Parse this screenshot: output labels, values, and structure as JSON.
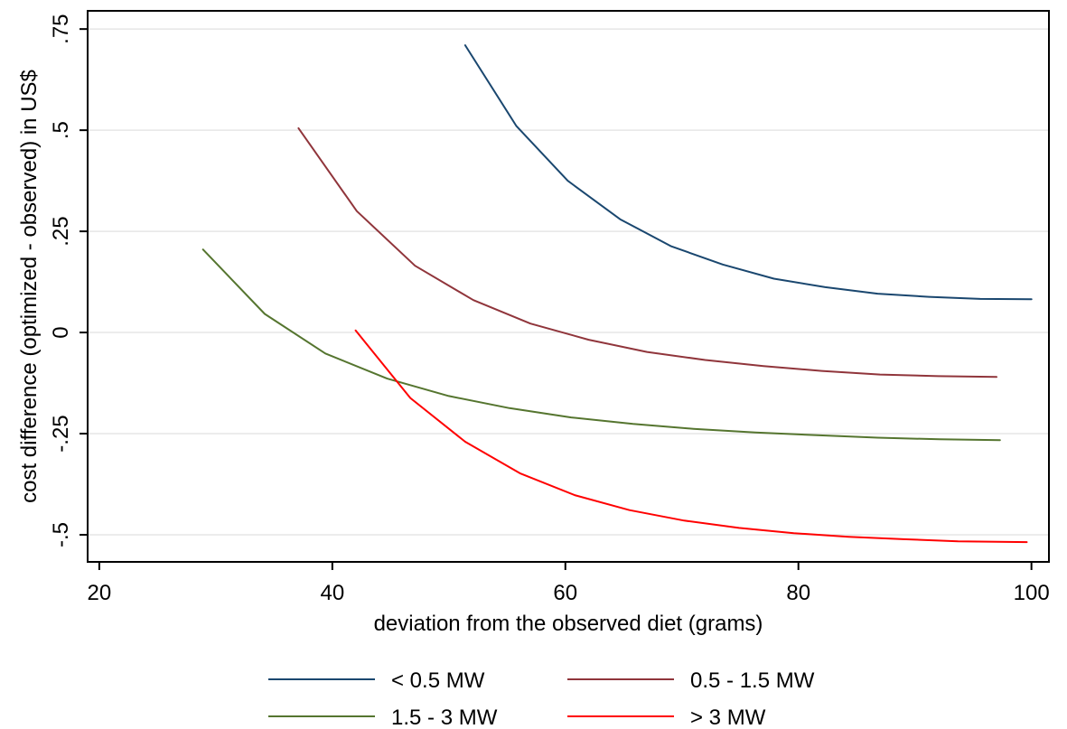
{
  "chart_data": {
    "type": "line",
    "title": "",
    "xlabel": "deviation from the observed diet (grams)",
    "ylabel": "cost difference (optimized - observed) in US$",
    "xlim": [
      19,
      101.5
    ],
    "ylim": [
      -0.567,
      0.795
    ],
    "xticks": [
      20,
      40,
      60,
      80,
      100
    ],
    "xtick_labels": [
      "20",
      "40",
      "60",
      "80",
      "100"
    ],
    "yticks": [
      -0.5,
      -0.25,
      0,
      0.25,
      0.5,
      0.75
    ],
    "ytick_labels": [
      "-.5",
      "-.25",
      "0",
      ".25",
      ".5",
      ".75"
    ],
    "grid": "horizontal",
    "legend_position": "bottom",
    "series": [
      {
        "name": "< 0.5 MW",
        "color": "#1a476f",
        "points": [
          [
            51.4,
            0.71
          ],
          [
            55.8,
            0.51
          ],
          [
            60.2,
            0.375
          ],
          [
            64.7,
            0.28
          ],
          [
            69.1,
            0.213
          ],
          [
            73.5,
            0.168
          ],
          [
            77.9,
            0.133
          ],
          [
            82.3,
            0.112
          ],
          [
            86.8,
            0.096
          ],
          [
            91.2,
            0.088
          ],
          [
            95.6,
            0.083
          ],
          [
            100,
            0.082
          ]
        ]
      },
      {
        "name": "0.5 - 1.5 MW",
        "color": "#90353b",
        "points": [
          [
            37.1,
            0.505
          ],
          [
            42.1,
            0.3
          ],
          [
            47.1,
            0.165
          ],
          [
            52.1,
            0.08
          ],
          [
            57.0,
            0.022
          ],
          [
            62.0,
            -0.018
          ],
          [
            67.0,
            -0.048
          ],
          [
            72.0,
            -0.068
          ],
          [
            77.0,
            -0.083
          ],
          [
            82.0,
            -0.095
          ],
          [
            87.0,
            -0.104
          ],
          [
            92.0,
            -0.108
          ],
          [
            97.0,
            -0.11
          ]
        ]
      },
      {
        "name": "1.5 - 3 MW",
        "color": "#55752f",
        "points": [
          [
            28.9,
            0.205
          ],
          [
            34.2,
            0.046
          ],
          [
            39.4,
            -0.052
          ],
          [
            44.7,
            -0.114
          ],
          [
            50.0,
            -0.157
          ],
          [
            55.2,
            -0.187
          ],
          [
            60.5,
            -0.21
          ],
          [
            65.8,
            -0.226
          ],
          [
            71.0,
            -0.238
          ],
          [
            76.3,
            -0.247
          ],
          [
            81.6,
            -0.254
          ],
          [
            86.8,
            -0.26
          ],
          [
            92.1,
            -0.264
          ],
          [
            97.3,
            -0.266
          ]
        ]
      },
      {
        "name": "> 3 MW",
        "color": "#ff0000",
        "points": [
          [
            42.0,
            0.005
          ],
          [
            46.7,
            -0.162
          ],
          [
            51.4,
            -0.27
          ],
          [
            56.1,
            -0.348
          ],
          [
            60.8,
            -0.402
          ],
          [
            65.5,
            -0.439
          ],
          [
            70.2,
            -0.465
          ],
          [
            74.9,
            -0.483
          ],
          [
            79.6,
            -0.496
          ],
          [
            84.3,
            -0.505
          ],
          [
            89.0,
            -0.511
          ],
          [
            93.7,
            -0.516
          ],
          [
            99.6,
            -0.518
          ]
        ]
      }
    ]
  }
}
